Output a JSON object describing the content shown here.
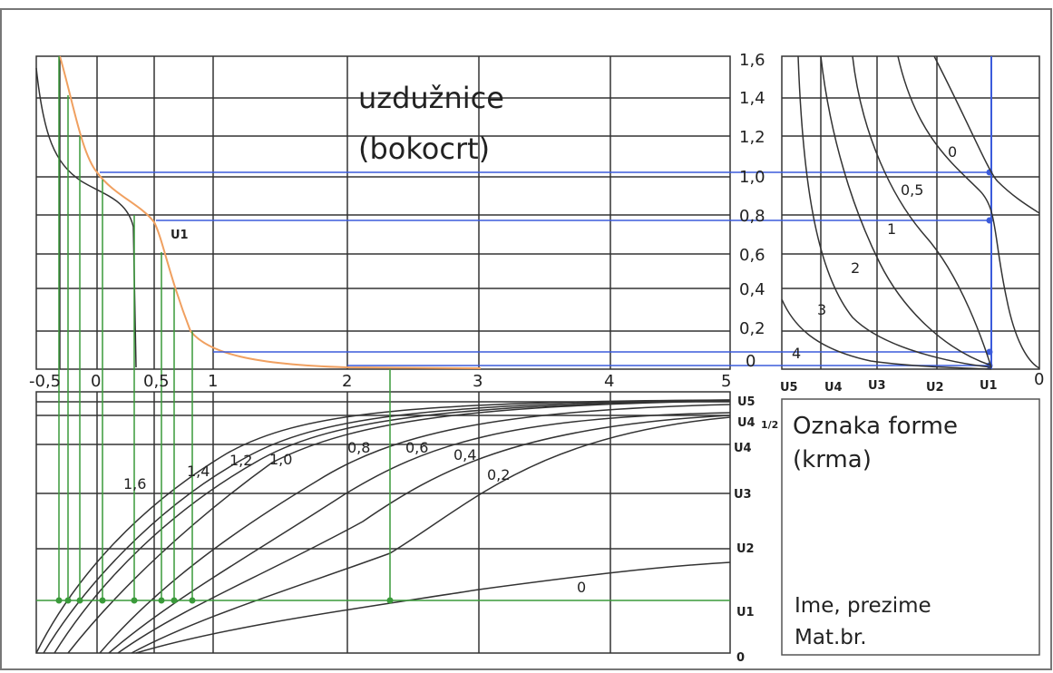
{
  "title": {
    "line1": "uzdužnice",
    "line2": "(bokocrt)"
  },
  "x_axis_ticks": [
    "-0,5",
    "0",
    "0,5",
    "1",
    "2",
    "3",
    "4",
    "5"
  ],
  "right_axis_y_ticks": [
    "1,6",
    "1,4",
    "1,2",
    "1,0",
    "0,8",
    "0,6",
    "0,4",
    "0,2",
    "0"
  ],
  "right_axis_x_labels": [
    "U5",
    "U4",
    "U3",
    "U2",
    "U1",
    "0"
  ],
  "bottom_axis_y_labels": [
    "U5",
    "U4",
    "1/2",
    "U4",
    "U3",
    "U2",
    "U1",
    "0"
  ],
  "curve_labels_top_right": [
    "0",
    "0,5",
    "1",
    "2",
    "3",
    "4"
  ],
  "curve_labels_bottom": [
    "1,6",
    "1,4",
    "1,2",
    "1,0",
    "0,8",
    "0,6",
    "0,4",
    "0,2",
    "0"
  ],
  "point_label": "U1",
  "info_box": {
    "title_line1": "Oznaka forme",
    "title_line2": "(krma)",
    "name_line": "Ime, prezime",
    "id_line": "Mat.br."
  },
  "colors": {
    "grid": "#333333",
    "profile_curve": "#f0a060",
    "projection_green": "#3a9a3a",
    "projection_blue": "#3b5bdb",
    "curves": "#333333"
  }
}
